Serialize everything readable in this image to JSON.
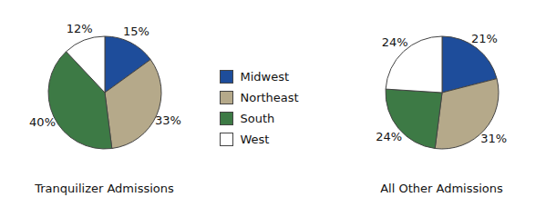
{
  "chart_data": [
    {
      "type": "pie",
      "title": "Tranquilizer Admissions",
      "categories": [
        "Midwest",
        "Northeast",
        "South",
        "West"
      ],
      "values": [
        15,
        33,
        40,
        12
      ],
      "value_labels": [
        "15%",
        "33%",
        "40%",
        "12%"
      ],
      "colors": [
        "#1e4d9b",
        "#b5a98a",
        "#3d7a45",
        "#ffffff"
      ],
      "legend": "right"
    },
    {
      "type": "pie",
      "title": "All Other Admissions",
      "categories": [
        "Midwest",
        "Northeast",
        "South",
        "West"
      ],
      "values": [
        21,
        31,
        24,
        24
      ],
      "value_labels": [
        "21%",
        "31%",
        "24%",
        "24%"
      ],
      "colors": [
        "#1e4d9b",
        "#b5a98a",
        "#3d7a45",
        "#ffffff"
      ]
    }
  ]
}
